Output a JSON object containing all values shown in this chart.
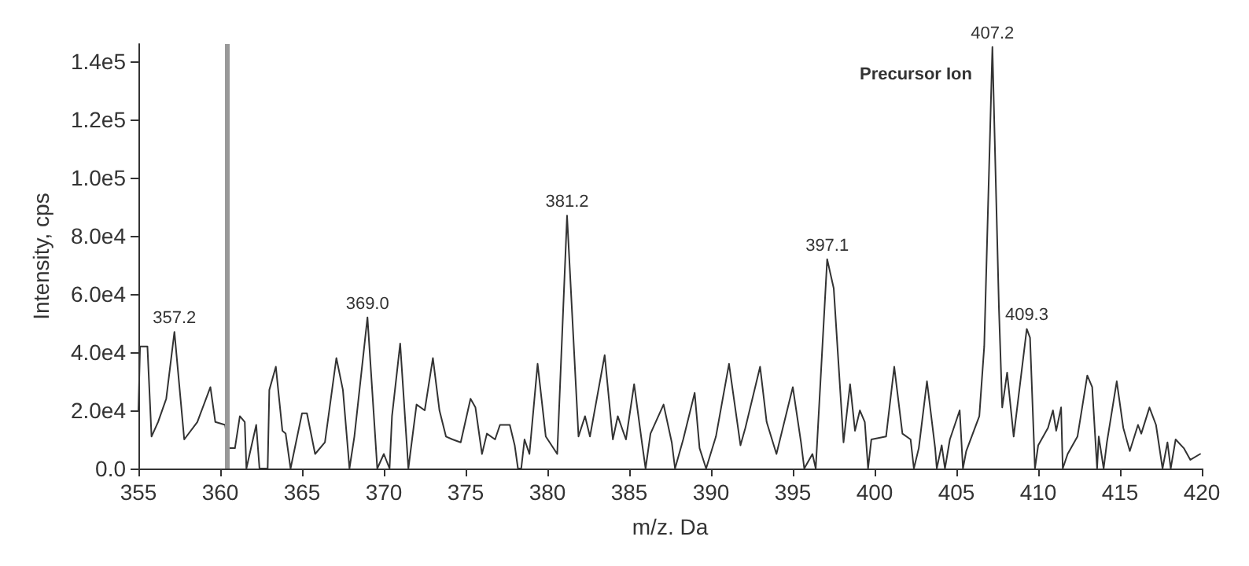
{
  "chart_data": {
    "type": "line",
    "xlabel": "m/z. Da",
    "ylabel": "Intensity, cps",
    "xlim": [
      355,
      420
    ],
    "xticks": [
      355,
      360,
      365,
      370,
      375,
      380,
      385,
      390,
      395,
      400,
      405,
      410,
      415,
      420
    ],
    "ylim": [
      0,
      146000
    ],
    "yticks": [
      {
        "value": 0,
        "label": "0.0"
      },
      {
        "value": 20000,
        "label": "2.0e4"
      },
      {
        "value": 40000,
        "label": "4.0e4"
      },
      {
        "value": 60000,
        "label": "6.0e4"
      },
      {
        "value": 80000,
        "label": "8.0e4"
      },
      {
        "value": 100000,
        "label": "1.0e5"
      },
      {
        "value": 120000,
        "label": "1.2e5"
      },
      {
        "value": 140000,
        "label": "1.4e5"
      }
    ],
    "grid": false,
    "marker": "none",
    "line_style": "solid",
    "series": [
      {
        "color": "#333333",
        "x": [
          355.0,
          355.1,
          355.55,
          355.8,
          356.2,
          356.7,
          357.2,
          357.8,
          358.6,
          359.4,
          359.7,
          360.3,
          360.5,
          360.9,
          361.2,
          361.5,
          361.6,
          362.2,
          362.4,
          362.9,
          363.0,
          363.4,
          363.8,
          364.0,
          364.3,
          365.0,
          365.3,
          365.8,
          366.4,
          367.1,
          367.5,
          367.9,
          368.2,
          369.0,
          369.6,
          370.0,
          370.35,
          370.5,
          371.0,
          371.5,
          372.0,
          372.5,
          373.0,
          373.4,
          373.8,
          374.2,
          374.7,
          375.3,
          375.6,
          376.0,
          376.3,
          376.8,
          377.1,
          377.7,
          378.0,
          378.2,
          378.4,
          378.6,
          378.9,
          379.4,
          379.9,
          380.6,
          381.2,
          381.9,
          382.3,
          382.6,
          383.5,
          384.0,
          384.3,
          384.8,
          385.3,
          385.8,
          386.0,
          386.3,
          387.1,
          387.6,
          387.8,
          388.3,
          389.0,
          389.3,
          389.7,
          390.3,
          391.1,
          391.8,
          392.1,
          393.0,
          393.4,
          394.0,
          395.0,
          395.5,
          395.7,
          396.2,
          396.4,
          397.1,
          397.5,
          398.1,
          398.5,
          398.8,
          399.1,
          399.4,
          399.6,
          399.8,
          400.7,
          401.2,
          401.7,
          402.2,
          402.4,
          402.7,
          403.2,
          403.7,
          403.8,
          404.1,
          404.3,
          404.6,
          405.2,
          405.4,
          405.6,
          406.4,
          406.7,
          407.2,
          407.6,
          407.8,
          408.1,
          408.5,
          409.3,
          409.5,
          409.8,
          410.0,
          410.6,
          410.9,
          411.1,
          411.4,
          411.5,
          411.8,
          412.4,
          413.0,
          413.3,
          413.6,
          413.7,
          414.0,
          414.2,
          414.8,
          415.2,
          415.6,
          416.1,
          416.3,
          416.8,
          417.2,
          417.6,
          417.9,
          418.1,
          418.4,
          418.9,
          419.3,
          419.9
        ],
        "values": [
          20000,
          42000,
          42000,
          11000,
          16000,
          24000,
          47000,
          10000,
          16000,
          28000,
          16000,
          15000,
          7000,
          7000,
          18000,
          16000,
          0,
          15000,
          0,
          0,
          27000,
          35000,
          13000,
          12000,
          0,
          19000,
          19000,
          5000,
          9000,
          38000,
          27000,
          0,
          11000,
          52000,
          0,
          5000,
          0,
          18000,
          43000,
          0,
          22000,
          20000,
          38000,
          20000,
          11000,
          10000,
          9000,
          24000,
          21000,
          5000,
          12000,
          10000,
          15000,
          15000,
          8000,
          0,
          0,
          10000,
          5000,
          36000,
          11000,
          5000,
          87000,
          11000,
          18000,
          11000,
          39000,
          10000,
          18000,
          10000,
          29000,
          8000,
          0,
          12000,
          22000,
          9000,
          0,
          10000,
          26000,
          7000,
          0,
          11000,
          36000,
          8000,
          14000,
          35000,
          16000,
          5000,
          28000,
          9000,
          0,
          5000,
          0,
          72000,
          62000,
          9000,
          29000,
          13000,
          20000,
          16000,
          0,
          10000,
          11000,
          35000,
          12000,
          10000,
          0,
          7000,
          30000,
          7000,
          0,
          8000,
          0,
          10000,
          20000,
          0,
          6000,
          18000,
          42000,
          145000,
          55000,
          21000,
          33000,
          11000,
          48000,
          45000,
          0,
          8000,
          14000,
          20000,
          13000,
          21000,
          0,
          5000,
          11000,
          32000,
          28000,
          0,
          11000,
          0,
          9000,
          30000,
          14000,
          6000,
          15000,
          12000,
          21000,
          15000,
          0,
          9000,
          0,
          10000,
          7000,
          3000,
          5000
        ]
      }
    ],
    "ref_lines": [
      {
        "axis": "x",
        "value": 360.4,
        "color": "#999999"
      }
    ],
    "annotations": [
      {
        "text": "357.2",
        "x": 357.2,
        "y": 47000
      },
      {
        "text": "369.0",
        "x": 369.0,
        "y": 52000
      },
      {
        "text": "381.2",
        "x": 381.2,
        "y": 87000
      },
      {
        "text": "397.1",
        "x": 397.1,
        "y": 72000
      },
      {
        "text": "407.2",
        "x": 407.2,
        "y": 145000
      },
      "Precursor Ion",
      {
        "text": "409.3",
        "x": 409.3,
        "y": 48000
      }
    ]
  }
}
